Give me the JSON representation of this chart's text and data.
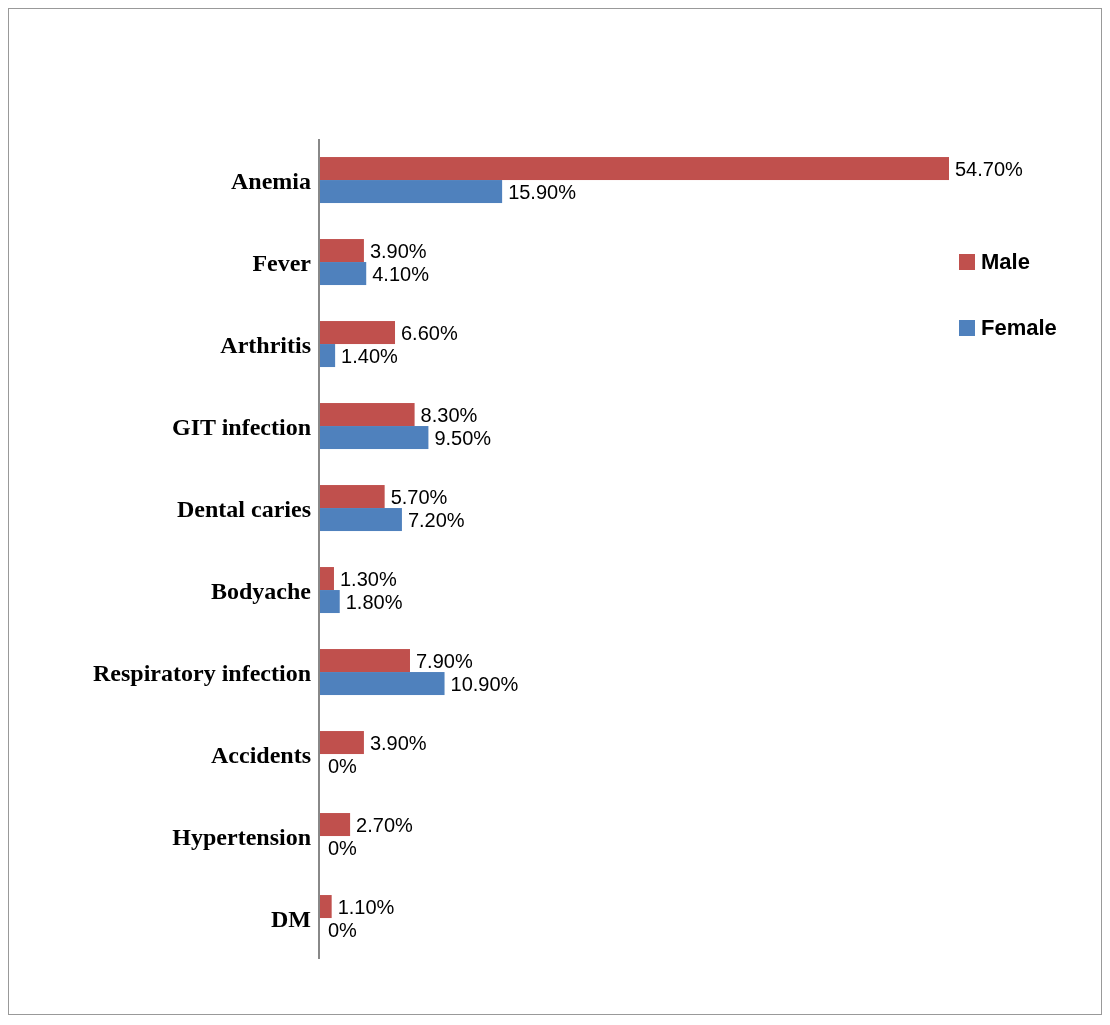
{
  "chart_data": {
    "type": "bar",
    "orientation": "horizontal",
    "categories": [
      "Anemia",
      "Fever",
      "Arthritis",
      "GIT infection",
      "Dental caries",
      "Bodyache",
      "Respiratory infection",
      "Accidents",
      "Hypertension",
      "DM"
    ],
    "series": [
      {
        "name": "Male",
        "color": "#c0504d",
        "values": [
          54.7,
          3.9,
          6.6,
          8.3,
          5.7,
          1.3,
          7.9,
          3.9,
          2.7,
          1.1
        ],
        "value_labels": [
          "54.70%",
          "3.90%",
          "6.60%",
          "8.30%",
          "5.70%",
          "1.30%",
          "7.90%",
          "3.90%",
          "2.70%",
          "1.10%"
        ]
      },
      {
        "name": "Female",
        "color": "#4f81bd",
        "values": [
          15.9,
          4.1,
          1.4,
          9.5,
          7.2,
          1.8,
          10.9,
          0,
          0,
          0
        ],
        "value_labels": [
          "15.90%",
          "4.10%",
          "1.40%",
          "9.50%",
          "7.20%",
          "1.80%",
          "10.90%",
          "0%",
          "0%",
          "0%"
        ]
      }
    ],
    "legend": "right",
    "grid": false
  }
}
